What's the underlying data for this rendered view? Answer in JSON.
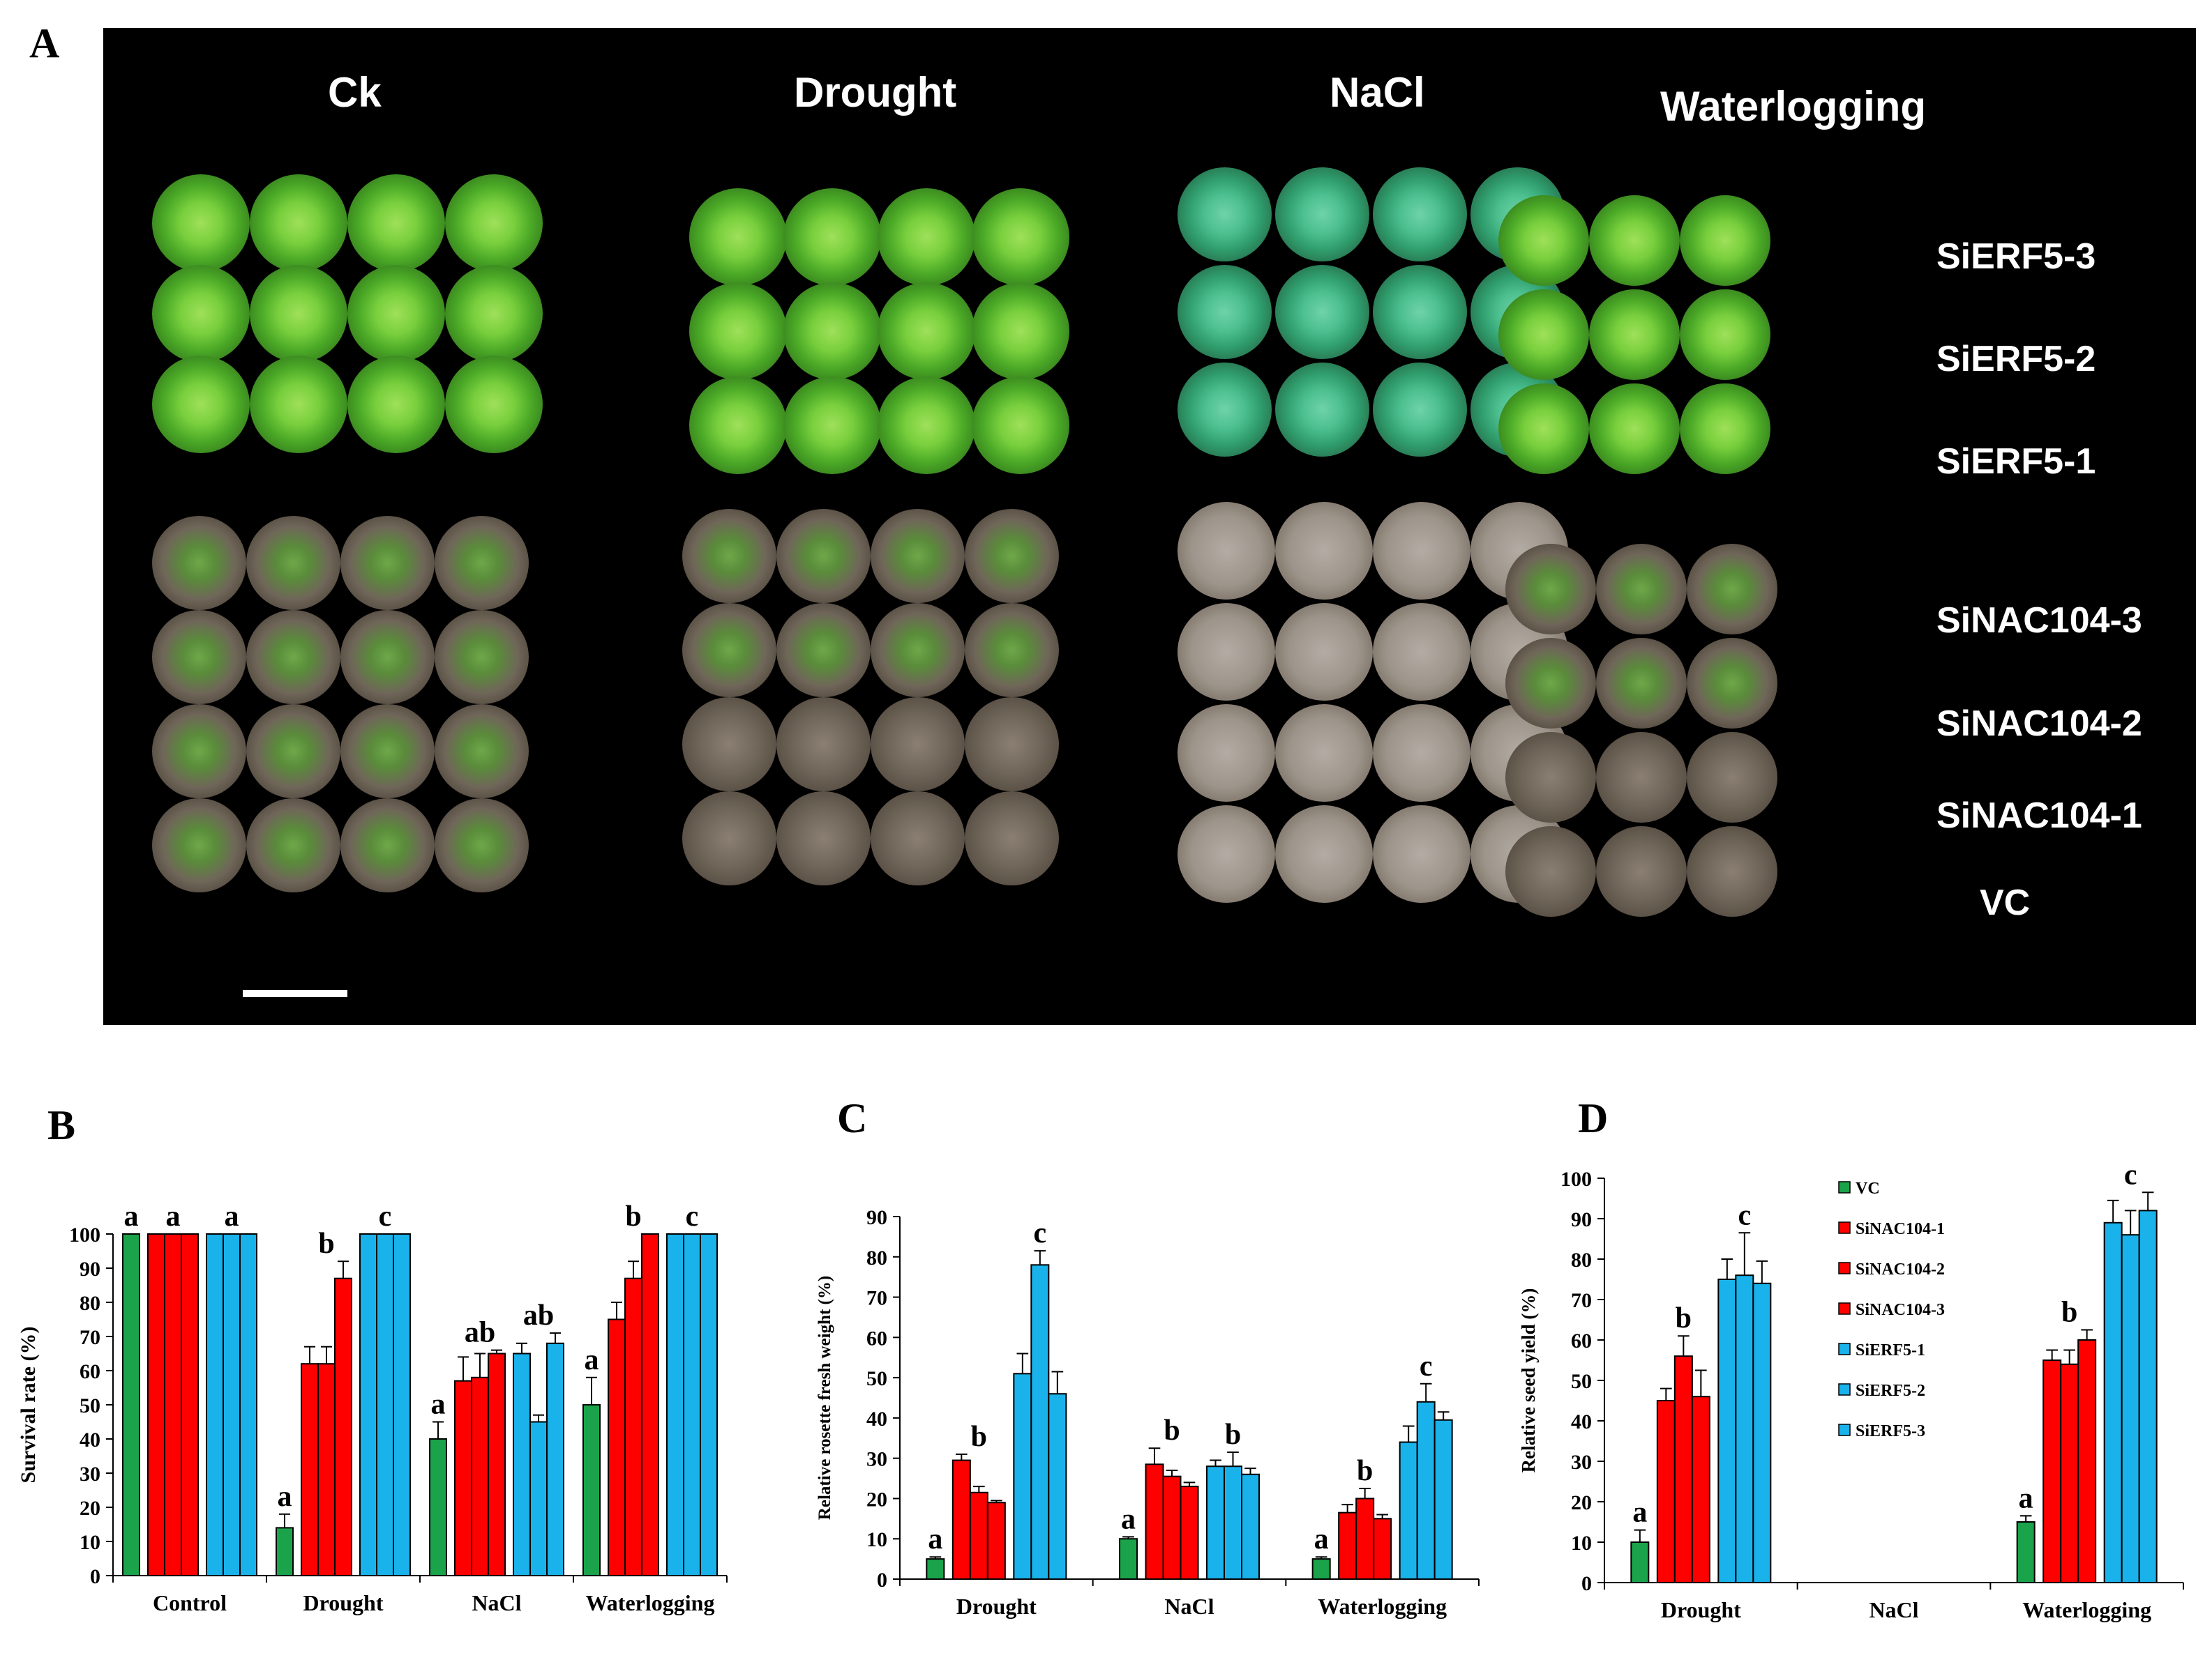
{
  "panels": {
    "a": "A",
    "b": "B",
    "c": "C",
    "d": "D"
  },
  "photo": {
    "columns": [
      "Ck",
      "Drought",
      "NaCl",
      "Waterlogging"
    ],
    "rows": [
      "SiERF5-3",
      "SiERF5-2",
      "SiERF5-1",
      "SiNAC104-3",
      "SiNAC104-2",
      "SiNAC104-1",
      "VC"
    ]
  },
  "colors": {
    "vc": "#1aa34a",
    "sinac": "#ff0000",
    "sierf": "#1ab2ea"
  },
  "chart_data": [
    {
      "id": "B",
      "type": "bar",
      "ylabel": "Survival rate (%)",
      "ylim": [
        0,
        100
      ],
      "yticks": [
        0,
        10,
        20,
        30,
        40,
        50,
        60,
        70,
        80,
        90,
        100
      ],
      "categories": [
        "Control",
        "Drought",
        "NaCl",
        "Waterlogging"
      ],
      "series": [
        {
          "name": "VC",
          "values": [
            100,
            14,
            40,
            50
          ],
          "errors": [
            0,
            4,
            5,
            8
          ]
        },
        {
          "name": "SiNAC104-1",
          "values": [
            100,
            62,
            57,
            75
          ],
          "errors": [
            0,
            5,
            7,
            5
          ]
        },
        {
          "name": "SiNAC104-2",
          "values": [
            100,
            62,
            58,
            87
          ],
          "errors": [
            0,
            5,
            7,
            5
          ]
        },
        {
          "name": "SiNAC104-3",
          "values": [
            100,
            87,
            65,
            100
          ],
          "errors": [
            0,
            5,
            1,
            0
          ]
        },
        {
          "name": "SiERF5-1",
          "values": [
            100,
            100,
            65,
            100
          ],
          "errors": [
            0,
            0,
            3,
            0
          ]
        },
        {
          "name": "SiERF5-2",
          "values": [
            100,
            100,
            45,
            100
          ],
          "errors": [
            0,
            0,
            2,
            0
          ]
        },
        {
          "name": "SiERF5-3",
          "values": [
            100,
            100,
            68,
            100
          ],
          "errors": [
            0,
            0,
            3,
            0
          ]
        }
      ],
      "annotations": [
        {
          "category": "Control",
          "group": "VC",
          "text": "a"
        },
        {
          "category": "Control",
          "group": "SiNAC104",
          "text": "a"
        },
        {
          "category": "Control",
          "group": "SiERF5",
          "text": "a"
        },
        {
          "category": "Drought",
          "group": "VC",
          "text": "a"
        },
        {
          "category": "Drought",
          "group": "SiNAC104",
          "text": "b"
        },
        {
          "category": "Drought",
          "group": "SiERF5",
          "text": "c"
        },
        {
          "category": "NaCl",
          "group": "VC",
          "text": "a"
        },
        {
          "category": "NaCl",
          "group": "SiNAC104",
          "text": "ab"
        },
        {
          "category": "NaCl",
          "group": "SiERF5",
          "text": "ab"
        },
        {
          "category": "Waterlogging",
          "group": "VC",
          "text": "a"
        },
        {
          "category": "Waterlogging",
          "group": "SiNAC104",
          "text": "b"
        },
        {
          "category": "Waterlogging",
          "group": "SiERF5",
          "text": "c"
        }
      ]
    },
    {
      "id": "C",
      "type": "bar",
      "ylabel": "Relative rosette fresh weight (%)",
      "ylim": [
        0,
        90
      ],
      "yticks": [
        0,
        10,
        20,
        30,
        40,
        50,
        60,
        70,
        80,
        90
      ],
      "categories": [
        "Drought",
        "NaCl",
        "Waterlogging"
      ],
      "series": [
        {
          "name": "VC",
          "values": [
            5,
            10,
            5
          ],
          "errors": [
            0.5,
            0.5,
            0.5
          ]
        },
        {
          "name": "SiNAC104-1",
          "values": [
            29.5,
            28.5,
            16.5
          ],
          "errors": [
            1.5,
            4,
            2
          ]
        },
        {
          "name": "SiNAC104-2",
          "values": [
            21.5,
            25.5,
            20
          ],
          "errors": [
            1.5,
            1.5,
            2.5
          ]
        },
        {
          "name": "SiNAC104-3",
          "values": [
            19,
            23,
            15
          ],
          "errors": [
            0.5,
            1,
            1
          ]
        },
        {
          "name": "SiERF5-1",
          "values": [
            51,
            28,
            34
          ],
          "errors": [
            5,
            1.5,
            4
          ]
        },
        {
          "name": "SiERF5-2",
          "values": [
            78,
            28,
            44
          ],
          "errors": [
            3.5,
            3.5,
            4.5
          ]
        },
        {
          "name": "SiERF5-3",
          "values": [
            46,
            26,
            39.5
          ],
          "errors": [
            5.5,
            1.5,
            2
          ]
        }
      ],
      "annotations": [
        {
          "category": "Drought",
          "group": "VC",
          "text": "a"
        },
        {
          "category": "Drought",
          "group": "SiNAC104",
          "text": "b"
        },
        {
          "category": "Drought",
          "group": "SiERF5",
          "text": "c"
        },
        {
          "category": "NaCl",
          "group": "VC",
          "text": "a"
        },
        {
          "category": "NaCl",
          "group": "SiNAC104",
          "text": "b"
        },
        {
          "category": "NaCl",
          "group": "SiERF5",
          "text": "b"
        },
        {
          "category": "Waterlogging",
          "group": "VC",
          "text": "a"
        },
        {
          "category": "Waterlogging",
          "group": "SiNAC104",
          "text": "b"
        },
        {
          "category": "Waterlogging",
          "group": "SiERF5",
          "text": "c"
        }
      ]
    },
    {
      "id": "D",
      "type": "bar",
      "ylabel": "Relative seed yield (%)",
      "ylim": [
        0,
        100
      ],
      "yticks": [
        0,
        10,
        20,
        30,
        40,
        50,
        60,
        70,
        80,
        90,
        100
      ],
      "categories": [
        "Drought",
        "NaCl",
        "Waterlogging"
      ],
      "series": [
        {
          "name": "VC",
          "values": [
            10,
            0,
            15
          ],
          "errors": [
            3,
            0,
            1.5
          ]
        },
        {
          "name": "SiNAC104-1",
          "values": [
            45,
            0,
            55
          ],
          "errors": [
            3,
            0,
            2.5
          ]
        },
        {
          "name": "SiNAC104-2",
          "values": [
            56,
            0,
            54
          ],
          "errors": [
            5,
            0,
            3.5
          ]
        },
        {
          "name": "SiNAC104-3",
          "values": [
            46,
            0,
            60
          ],
          "errors": [
            6.5,
            0,
            2.5
          ]
        },
        {
          "name": "SiERF5-1",
          "values": [
            75,
            0,
            89
          ],
          "errors": [
            5,
            0,
            5.5
          ]
        },
        {
          "name": "SiERF5-2",
          "values": [
            76,
            0,
            86
          ],
          "errors": [
            10.5,
            0,
            6
          ]
        },
        {
          "name": "SiERF5-3",
          "values": [
            74,
            0,
            92
          ],
          "errors": [
            5.5,
            0,
            4.5
          ]
        }
      ],
      "legend": [
        "VC",
        "SiNAC104-1",
        "SiNAC104-2",
        "SiNAC104-3",
        "SiERF5-1",
        "SiERF5-2",
        "SiERF5-3"
      ],
      "annotations": [
        {
          "category": "Drought",
          "group": "VC",
          "text": "a"
        },
        {
          "category": "Drought",
          "group": "SiNAC104",
          "text": "b"
        },
        {
          "category": "Drought",
          "group": "SiERF5",
          "text": "c"
        },
        {
          "category": "Waterlogging",
          "group": "VC",
          "text": "a"
        },
        {
          "category": "Waterlogging",
          "group": "SiNAC104",
          "text": "b"
        },
        {
          "category": "Waterlogging",
          "group": "SiERF5",
          "text": "c"
        }
      ]
    }
  ]
}
